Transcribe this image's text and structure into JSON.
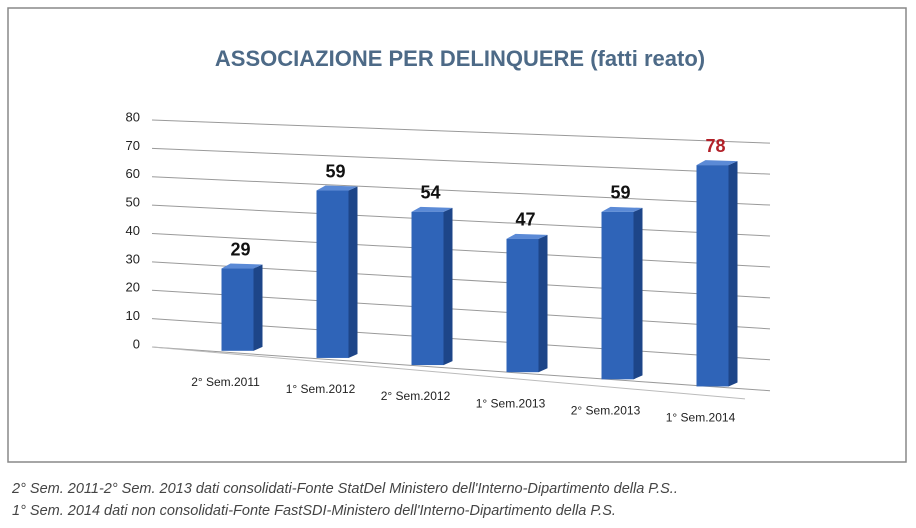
{
  "chart_data": {
    "type": "bar",
    "title": "ASSOCIAZIONE PER DELINQUERE (fatti reato)",
    "categories": [
      "2° Sem.2011",
      "1° Sem.2012",
      "2° Sem.2012",
      "1° Sem.2013",
      "2° Sem.2013",
      "1° Sem.2014"
    ],
    "values": [
      29,
      59,
      54,
      47,
      59,
      78
    ],
    "color": "#2f64b8",
    "value_label_colors": [
      "#111111",
      "#111111",
      "#111111",
      "#111111",
      "#111111",
      "#b22028"
    ],
    "ylim": [
      0,
      80
    ],
    "yticks": [
      0,
      10,
      20,
      30,
      40,
      50,
      60,
      70,
      80
    ],
    "grid": true
  },
  "notes": [
    "2° Sem. 2011-2° Sem. 2013 dati consolidati-Fonte StatDel Ministero dell'Interno-Dipartimento della P.S..",
    "1° Sem. 2014 dati non consolidati-Fonte FastSDI-Ministero dell'Interno-Dipartimento della P.S."
  ]
}
